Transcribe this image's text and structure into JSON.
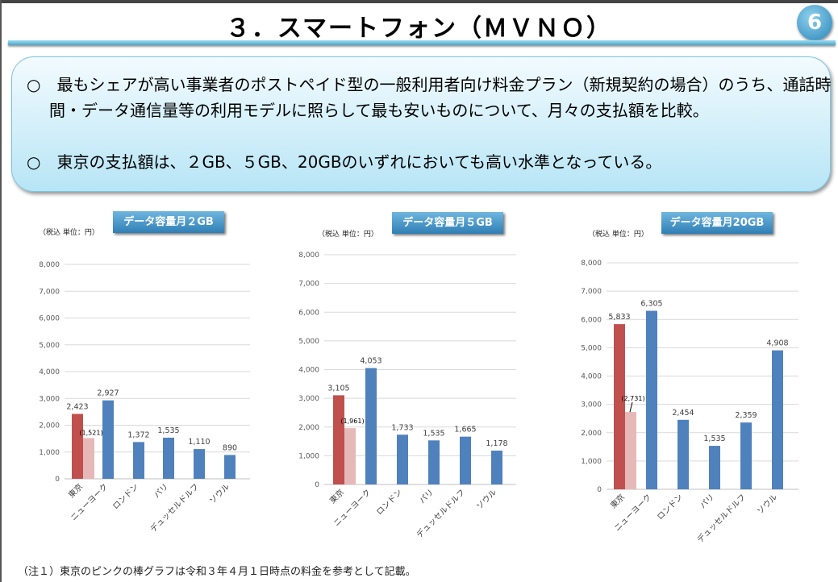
{
  "header": {
    "title": "３．スマートフォン（ＭＶＮＯ）",
    "page_badge": "6"
  },
  "summary": {
    "bullets": [
      "○　最もシェアが高い事業者のポストペイド型の一般利用者向け料金プラン（新規契約の場合）のうち、通話時間・データ通信量等の利用モデルに照らして最も安いものについて、月々の支払額を比較。",
      "○　東京の支払額は、２GB、５GB、20GBのいずれにおいても高い水準となっている。"
    ]
  },
  "footnote": "（注１）東京のピンクの棒グラフは令和３年４月１日時点の料金を参考として記載。",
  "colors": {
    "tokyo": "#c0504d",
    "tokyo_reference": "#e6b9b8",
    "other": "#4f81bd"
  },
  "chart_data": [
    {
      "type": "bar",
      "title": "データ容量月２GB",
      "unit_label": "（税込 単位：円）",
      "categories": [
        "東京",
        "ニューヨーク",
        "ロンドン",
        "パリ",
        "デュッセルドルフ",
        "ソウル"
      ],
      "values": [
        2423,
        2927,
        1372,
        1535,
        1110,
        890
      ],
      "tokyo_reference": 1521,
      "value_labels": [
        "2,423",
        "2,927",
        "1,372",
        "1,535",
        "1,110",
        "890"
      ],
      "reference_label": "(1,521)",
      "ylim": [
        0,
        8000
      ],
      "yticks": [
        "0",
        "1,000",
        "2,000",
        "3,000",
        "4,000",
        "5,000",
        "6,000",
        "7,000",
        "8,000"
      ],
      "grid": true
    },
    {
      "type": "bar",
      "title": "データ容量月５GB",
      "unit_label": "（税込 単位：円）",
      "categories": [
        "東京",
        "ニューヨーク",
        "ロンドン",
        "パリ",
        "デュッセルドルフ",
        "ソウル"
      ],
      "values": [
        3105,
        4053,
        1733,
        1535,
        1665,
        1178
      ],
      "tokyo_reference": 1961,
      "value_labels": [
        "3,105",
        "4,053",
        "1,733",
        "1,535",
        "1,665",
        "1,178"
      ],
      "reference_label": "(1,961)",
      "ylim": [
        0,
        8000
      ],
      "yticks": [
        "0",
        "1,000",
        "2,000",
        "3,000",
        "4,000",
        "5,000",
        "6,000",
        "7,000",
        "8,000"
      ],
      "grid": true
    },
    {
      "type": "bar",
      "title": "データ容量月20GB",
      "unit_label": "（税込 単位：円）",
      "categories": [
        "東京",
        "ニューヨーク",
        "ロンドン",
        "パリ",
        "デュッセルドルフ",
        "ソウル"
      ],
      "values": [
        5833,
        6305,
        2454,
        1535,
        2359,
        4908
      ],
      "tokyo_reference": 2731,
      "value_labels": [
        "5,833",
        "6,305",
        "2,454",
        "1,535",
        "2,359",
        "4,908"
      ],
      "reference_label": "(2,731)",
      "ylim": [
        0,
        8000
      ],
      "yticks": [
        "0",
        "1,000",
        "2,000",
        "3,000",
        "4,000",
        "5,000",
        "6,000",
        "7,000",
        "8,000"
      ],
      "grid": true
    }
  ]
}
